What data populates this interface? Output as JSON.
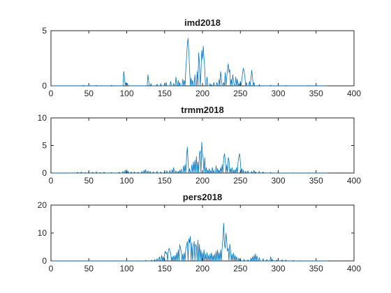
{
  "chart_data": [
    {
      "type": "line",
      "title": "imd2018",
      "xlabel": "",
      "ylabel": "",
      "xlim": [
        0,
        400
      ],
      "ylim": [
        0,
        5
      ],
      "xticks": [
        0,
        50,
        100,
        150,
        200,
        250,
        300,
        350,
        400
      ],
      "yticks": [
        0,
        5
      ],
      "grid": false,
      "color": "#0072BD",
      "series": [
        {
          "x_range": [
            1,
            365
          ],
          "peaks": [
            [
              43,
              0.05
            ],
            [
              60,
              0.04
            ],
            [
              80,
              0.05
            ],
            [
              96,
              1.3
            ],
            [
              97,
              0.8
            ],
            [
              99,
              0.3
            ],
            [
              101,
              0.2
            ],
            [
              128,
              1.0
            ],
            [
              129,
              0.4
            ],
            [
              132,
              0.2
            ],
            [
              140,
              0.15
            ],
            [
              145,
              0.2
            ],
            [
              152,
              0.3
            ],
            [
              158,
              0.4
            ],
            [
              162,
              0.2
            ],
            [
              165,
              0.8
            ],
            [
              168,
              0.5
            ],
            [
              170,
              0.3
            ],
            [
              174,
              0.6
            ],
            [
              176,
              0.5
            ],
            [
              178,
              1.5
            ],
            [
              179,
              2.5
            ],
            [
              180,
              3.8
            ],
            [
              181,
              4.3
            ],
            [
              182,
              3.0
            ],
            [
              183,
              1.5
            ],
            [
              185,
              0.7
            ],
            [
              187,
              0.5
            ],
            [
              190,
              1.0
            ],
            [
              193,
              1.3
            ],
            [
              195,
              3.0
            ],
            [
              196,
              2.0
            ],
            [
              198,
              1.2
            ],
            [
              199,
              3.2
            ],
            [
              200,
              2.4
            ],
            [
              201,
              3.6
            ],
            [
              202,
              2.5
            ],
            [
              203,
              1.5
            ],
            [
              206,
              0.8
            ],
            [
              210,
              0.2
            ],
            [
              212,
              0.1
            ],
            [
              215,
              0.3
            ],
            [
              219,
              0.3
            ],
            [
              222,
              0.6
            ],
            [
              224,
              1.3
            ],
            [
              225,
              0.6
            ],
            [
              228,
              0.3
            ],
            [
              230,
              1.2
            ],
            [
              232,
              0.8
            ],
            [
              233,
              1.5
            ],
            [
              234,
              2.0
            ],
            [
              235,
              1.2
            ],
            [
              236,
              1.5
            ],
            [
              238,
              0.6
            ],
            [
              240,
              1.0
            ],
            [
              241,
              0.4
            ],
            [
              244,
              0.8
            ],
            [
              246,
              0.6
            ],
            [
              248,
              0.2
            ],
            [
              250,
              0.4
            ],
            [
              252,
              0.6
            ],
            [
              253,
              1.2
            ],
            [
              254,
              1.6
            ],
            [
              255,
              1.3
            ],
            [
              256,
              0.8
            ],
            [
              258,
              0.3
            ],
            [
              262,
              0.4
            ],
            [
              264,
              0.7
            ],
            [
              265,
              1.4
            ],
            [
              266,
              0.8
            ],
            [
              268,
              0.3
            ],
            [
              275,
              0.1
            ],
            [
              290,
              0.05
            ],
            [
              310,
              0.03
            ],
            [
              340,
              0.03
            ]
          ]
        }
      ]
    },
    {
      "type": "line",
      "title": "trmm2018",
      "xlabel": "",
      "ylabel": "",
      "xlim": [
        0,
        400
      ],
      "ylim": [
        0,
        10
      ],
      "xticks": [
        0,
        50,
        100,
        150,
        200,
        250,
        300,
        350,
        400
      ],
      "yticks": [
        0,
        5,
        10
      ],
      "grid": false,
      "color": "#0072BD",
      "series": [
        {
          "x_range": [
            1,
            365
          ],
          "peaks": [
            [
              35,
              0.15
            ],
            [
              40,
              0.2
            ],
            [
              45,
              0.1
            ],
            [
              50,
              0.2
            ],
            [
              55,
              0.15
            ],
            [
              60,
              0.2
            ],
            [
              65,
              0.1
            ],
            [
              70,
              0.15
            ],
            [
              80,
              0.1
            ],
            [
              90,
              0.15
            ],
            [
              95,
              0.3
            ],
            [
              98,
              0.5
            ],
            [
              100,
              0.6
            ],
            [
              102,
              0.3
            ],
            [
              106,
              0.2
            ],
            [
              110,
              0.2
            ],
            [
              115,
              0.15
            ],
            [
              120,
              0.3
            ],
            [
              123,
              0.5
            ],
            [
              125,
              0.6
            ],
            [
              128,
              0.4
            ],
            [
              131,
              0.3
            ],
            [
              135,
              0.2
            ],
            [
              140,
              0.3
            ],
            [
              145,
              0.2
            ],
            [
              150,
              0.3
            ],
            [
              153,
              0.4
            ],
            [
              157,
              0.5
            ],
            [
              160,
              0.6
            ],
            [
              162,
              1.0
            ],
            [
              165,
              0.4
            ],
            [
              168,
              0.3
            ],
            [
              170,
              0.5
            ],
            [
              172,
              0.7
            ],
            [
              175,
              1.3
            ],
            [
              177,
              1.5
            ],
            [
              179,
              3.0
            ],
            [
              180,
              4.7
            ],
            [
              181,
              2.0
            ],
            [
              183,
              0.8
            ],
            [
              186,
              1.5
            ],
            [
              188,
              2.0
            ],
            [
              190,
              2.3
            ],
            [
              192,
              3.0
            ],
            [
              194,
              2.0
            ],
            [
              196,
              3.5
            ],
            [
              197,
              4.0
            ],
            [
              199,
              5.6
            ],
            [
              200,
              3.5
            ],
            [
              201,
              2.5
            ],
            [
              203,
              2.8
            ],
            [
              205,
              1.0
            ],
            [
              207,
              0.5
            ],
            [
              209,
              0.8
            ],
            [
              211,
              0.4
            ],
            [
              213,
              1.0
            ],
            [
              215,
              0.5
            ],
            [
              218,
              1.3
            ],
            [
              220,
              0.8
            ],
            [
              222,
              0.5
            ],
            [
              224,
              1.0
            ],
            [
              226,
              1.5
            ],
            [
              228,
              2.8
            ],
            [
              229,
              3.5
            ],
            [
              230,
              2.5
            ],
            [
              232,
              1.5
            ],
            [
              234,
              2.8
            ],
            [
              235,
              2.3
            ],
            [
              237,
              0.8
            ],
            [
              239,
              1.0
            ],
            [
              241,
              0.5
            ],
            [
              243,
              0.6
            ],
            [
              245,
              1.0
            ],
            [
              247,
              2.0
            ],
            [
              248,
              3.0
            ],
            [
              249,
              3.5
            ],
            [
              250,
              2.0
            ],
            [
              252,
              0.8
            ],
            [
              254,
              0.5
            ],
            [
              257,
              0.3
            ],
            [
              260,
              0.4
            ],
            [
              265,
              0.3
            ],
            [
              268,
              0.5
            ],
            [
              270,
              0.2
            ],
            [
              275,
              0.3
            ],
            [
              280,
              0.2
            ],
            [
              290,
              0.1
            ],
            [
              300,
              0.1
            ],
            [
              320,
              0.05
            ],
            [
              340,
              0.05
            ],
            [
              360,
              0.05
            ]
          ]
        }
      ]
    },
    {
      "type": "line",
      "title": "pers2018",
      "xlabel": "",
      "ylabel": "",
      "xlim": [
        0,
        400
      ],
      "ylim": [
        0,
        20
      ],
      "xticks": [
        0,
        50,
        100,
        150,
        200,
        250,
        300,
        350,
        400
      ],
      "yticks": [
        0,
        10,
        20
      ],
      "grid": false,
      "color": "#0072BD",
      "series": [
        {
          "x_range": [
            1,
            365
          ],
          "peaks": [
            [
              100,
              0.1
            ],
            [
              115,
              0.1
            ],
            [
              125,
              0.2
            ],
            [
              133,
              0.3
            ],
            [
              137,
              0.5
            ],
            [
              140,
              0.8
            ],
            [
              143,
              1.5
            ],
            [
              146,
              2.0
            ],
            [
              148,
              1.5
            ],
            [
              150,
              2.5
            ],
            [
              151,
              3.5
            ],
            [
              152,
              2.5
            ],
            [
              153,
              3.0
            ],
            [
              155,
              3.8
            ],
            [
              156,
              4.5
            ],
            [
              157,
              3.5
            ],
            [
              158,
              2.8
            ],
            [
              160,
              1.5
            ],
            [
              162,
              1.8
            ],
            [
              164,
              2.0
            ],
            [
              166,
              3.0
            ],
            [
              168,
              4.0
            ],
            [
              170,
              5.8
            ],
            [
              171,
              4.5
            ],
            [
              172,
              3.5
            ],
            [
              174,
              2.5
            ],
            [
              176,
              3.0
            ],
            [
              178,
              4.5
            ],
            [
              179,
              5.5
            ],
            [
              180,
              7.0
            ],
            [
              182,
              8.0
            ],
            [
              183,
              6.5
            ],
            [
              184,
              8.8
            ],
            [
              186,
              6.5
            ],
            [
              188,
              4.5
            ],
            [
              189,
              7.0
            ],
            [
              191,
              6.0
            ],
            [
              192,
              5.0
            ],
            [
              194,
              7.5
            ],
            [
              196,
              6.0
            ],
            [
              198,
              4.0
            ],
            [
              200,
              3.0
            ],
            [
              202,
              4.0
            ],
            [
              204,
              2.5
            ],
            [
              206,
              3.0
            ],
            [
              208,
              2.0
            ],
            [
              210,
              2.5
            ],
            [
              212,
              3.0
            ],
            [
              214,
              2.0
            ],
            [
              216,
              2.5
            ],
            [
              218,
              3.5
            ],
            [
              220,
              4.0
            ],
            [
              222,
              3.0
            ],
            [
              224,
              4.0
            ],
            [
              226,
              5.0
            ],
            [
              227,
              8.0
            ],
            [
              228,
              13.5
            ],
            [
              229,
              6.0
            ],
            [
              230,
              4.5
            ],
            [
              231,
              10.0
            ],
            [
              232,
              7.0
            ],
            [
              233,
              3.5
            ],
            [
              234,
              4.5
            ],
            [
              236,
              6.0
            ],
            [
              237,
              4.0
            ],
            [
              239,
              2.5
            ],
            [
              241,
              2.8
            ],
            [
              243,
              2.0
            ],
            [
              245,
              1.5
            ],
            [
              248,
              1.0
            ],
            [
              250,
              0.8
            ],
            [
              255,
              0.5
            ],
            [
              260,
              0.4
            ],
            [
              264,
              1.0
            ],
            [
              266,
              1.5
            ],
            [
              268,
              2.0
            ],
            [
              270,
              2.5
            ],
            [
              272,
              1.8
            ],
            [
              275,
              1.2
            ],
            [
              280,
              0.8
            ],
            [
              285,
              0.5
            ],
            [
              290,
              1.5
            ],
            [
              292,
              0.6
            ],
            [
              298,
              0.3
            ],
            [
              305,
              0.4
            ],
            [
              310,
              0.3
            ],
            [
              320,
              0.2
            ],
            [
              330,
              0.1
            ],
            [
              345,
              0.1
            ]
          ]
        }
      ]
    }
  ]
}
